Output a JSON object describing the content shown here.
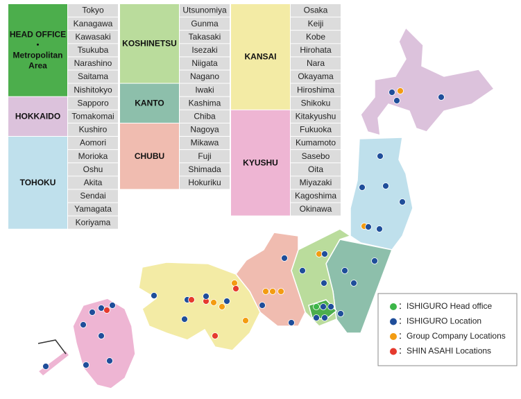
{
  "regions": [
    {
      "name_lines": [
        "HEAD OFFICE",
        "・",
        "Metropolitan",
        "Area"
      ],
      "color": "#4cae4c",
      "text_color": "#111",
      "cities": [
        "Tokyo",
        "Kanagawa",
        "Kawasaki",
        "Tsukuba",
        "Narashino",
        "Saitama",
        "Nishitokyo"
      ]
    },
    {
      "name_lines": [
        "HOKKAIDO"
      ],
      "color": "#dcc2dc",
      "text_color": "#111",
      "cities": [
        "Sapporo",
        "Tomakomai",
        "Kushiro"
      ]
    },
    {
      "name_lines": [
        "TOHOKU"
      ],
      "color": "#bfe0ec",
      "text_color": "#111",
      "cities": [
        "Aomori",
        "Morioka",
        "Oshu",
        "Akita",
        "Sendai",
        "Yamagata",
        "Koriyama"
      ]
    },
    {
      "name_lines": [
        "KOSHINETSU"
      ],
      "color": "#badc9c",
      "text_color": "#111",
      "cities": [
        "Utsunomiya",
        "Gunma",
        "Takasaki",
        "Isezaki",
        "Niigata",
        "Nagano"
      ]
    },
    {
      "name_lines": [
        "KANTO"
      ],
      "color": "#8dbfab",
      "text_color": "#111",
      "cities": [
        "Iwaki",
        "Kashima",
        "Chiba"
      ]
    },
    {
      "name_lines": [
        "CHUBU"
      ],
      "color": "#f0bcb0",
      "text_color": "#111",
      "cities": [
        "Nagoya",
        "Mikawa",
        "Fuji",
        "Shimada",
        "Hokuriku"
      ]
    },
    {
      "name_lines": [
        "KANSAI"
      ],
      "color": "#f3eba5",
      "text_color": "#111",
      "cities": [
        "Osaka",
        "Keiji",
        "Kobe",
        "Hirohata",
        "Nara",
        "Okayama",
        "Hiroshima",
        "Shikoku"
      ]
    },
    {
      "name_lines": [
        "KYUSHU"
      ],
      "color": "#eeb5d3",
      "text_color": "#111",
      "cities": [
        "Kitakyushu",
        "Fukuoka",
        "Kumamoto",
        "Sasebo",
        "Oita",
        "Miyazaki",
        "Kagoshima",
        "Okinawa"
      ]
    }
  ],
  "legend": [
    {
      "label": "：ISHIGURO Head office",
      "color": "#3cb648"
    },
    {
      "label": "：ISHIGURO Location",
      "color": "#1f4e9a"
    },
    {
      "label": "：Group Company Locations",
      "color": "#f39c12"
    },
    {
      "label": "：SHIN ASAHI Locations",
      "color": "#e53a2e"
    }
  ]
}
